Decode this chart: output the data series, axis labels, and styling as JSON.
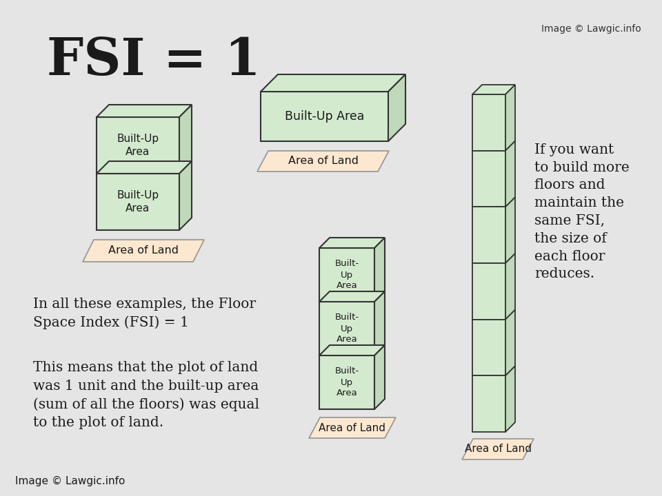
{
  "bg_color": "#e5e5e5",
  "box_fill": "#d4eacf",
  "box_edge": "#333333",
  "box_right_fill": "#c0d9ba",
  "land_fill": "#fadadc",
  "land_fill2": "#fce8d0",
  "land_edge": "#888888",
  "text_color": "#1a1a1a",
  "title": "FSI = 1",
  "title_fontsize": 54,
  "copyright_text": "Image © Lawgic.info",
  "bottom_copyright_text": "Image © Lawgic.info",
  "paragraph1": "In all these examples, the Floor\nSpace Index (FSI) = 1",
  "paragraph2": "This means that the plot of land\nwas 1 unit and the built-up area\n(sum of all the floors) was equal\nto the plot of land.",
  "right_text": "If you want\nto build more\nfloors and\nmaintain the\nsame FSI,\nthe size of\neach floor\nreduces.",
  "built_up_label_2line": "Built-Up\nArea",
  "built_up_label_3line": "Built-\nUp\nArea",
  "built_up_label_1line": "Built-Up Area",
  "area_of_land_label": "Area of Land"
}
